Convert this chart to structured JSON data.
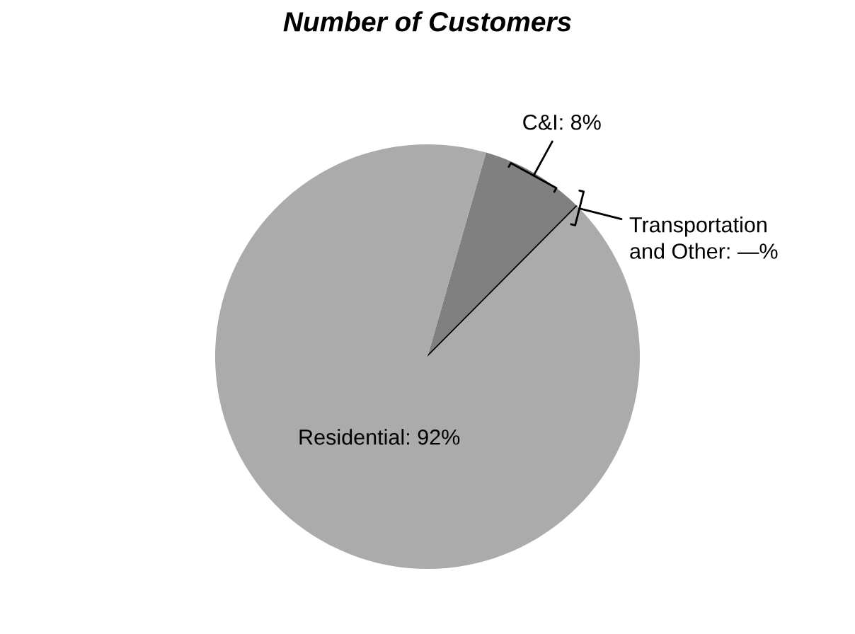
{
  "chart_data": {
    "type": "pie",
    "title": "Number of Customers",
    "categories": [
      "C&I: 8%",
      "Transportation\nand Other: —%",
      "Residential: 92%"
    ],
    "values": [
      8,
      0,
      92
    ],
    "colors": [
      "#808080",
      "#000000",
      "#ababab"
    ]
  }
}
